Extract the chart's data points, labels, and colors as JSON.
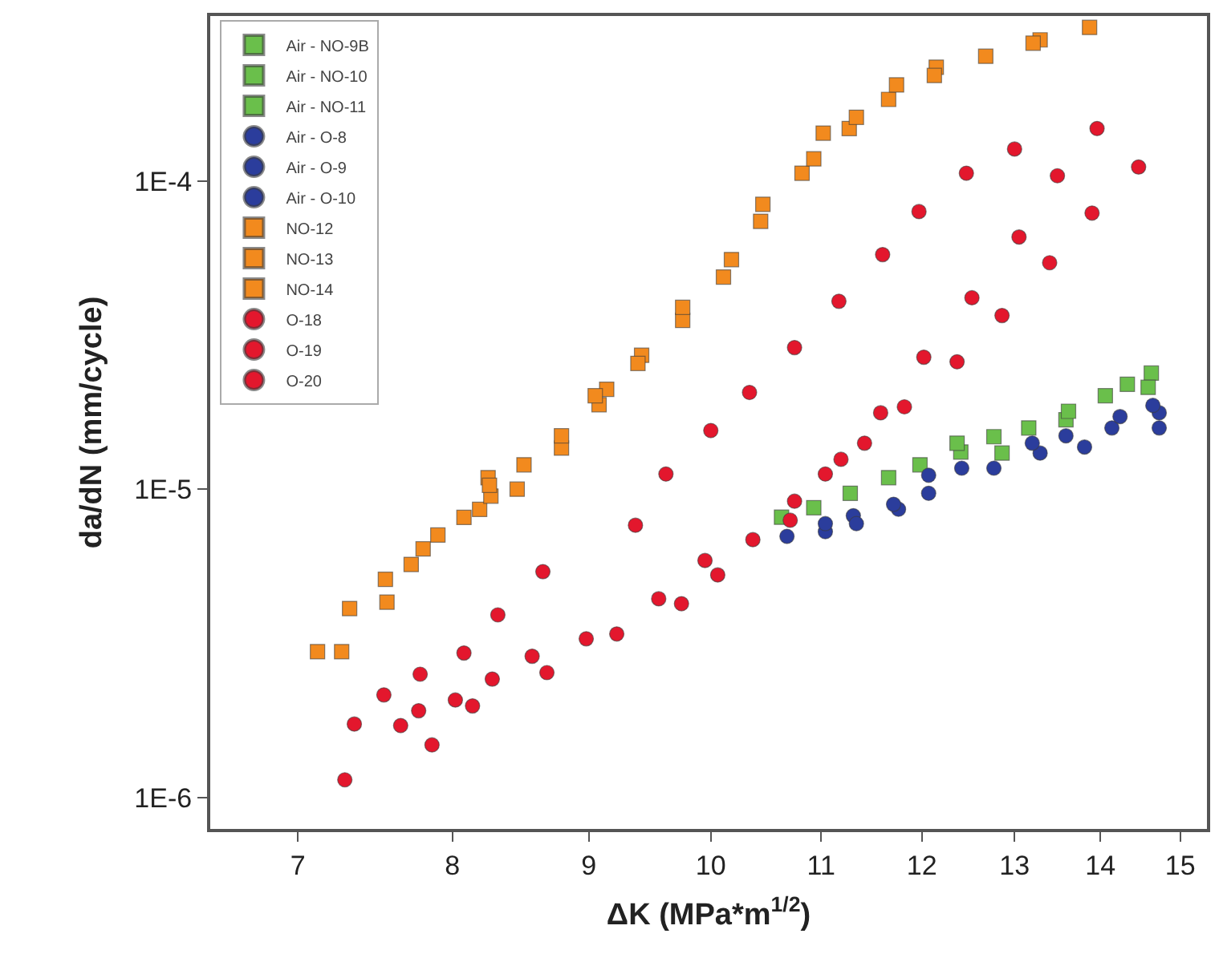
{
  "chart_data": {
    "type": "scatter",
    "xlabel": "ΔK (MPa*m$^{1/2}$)",
    "ylabel": "da/dN (mm/cycle)",
    "log": "xy",
    "xlim": [
      6.49,
      15.35
    ],
    "ylim": [
      7.9e-07,
      0.000343
    ],
    "xticks": [
      7,
      8,
      9,
      10,
      11,
      12,
      13,
      14,
      15
    ],
    "yticks": [
      {
        "value": 1e-06,
        "label": "1E-6"
      },
      {
        "value": 1e-05,
        "label": "1E-5"
      },
      {
        "value": 0.0001,
        "label": "1E-4"
      }
    ],
    "legend": "top left",
    "series": [
      {
        "name": "Air - NO-9B",
        "color": "#6abf4b",
        "marker": "square",
        "x": [
          10.63,
          11.66,
          12.41,
          13.16,
          14.06,
          14.63
        ],
        "values": [
          8.11e-06,
          1.09e-05,
          1.32e-05,
          1.58e-05,
          2.01e-05,
          2.38e-05
        ]
      },
      {
        "name": "Air - NO-10",
        "color": "#6abf4b",
        "marker": "square",
        "x": [
          10.93,
          11.98,
          12.77,
          13.59,
          14.33
        ],
        "values": [
          8.71e-06,
          1.2e-05,
          1.48e-05,
          1.68e-05,
          2.19e-05
        ]
      },
      {
        "name": "Air - NO-11",
        "color": "#6abf4b",
        "marker": "square",
        "x": [
          11.28,
          12.37,
          12.86,
          13.62,
          14.59
        ],
        "values": [
          9.7e-06,
          1.41e-05,
          1.31e-05,
          1.79e-05,
          2.14e-05
        ]
      },
      {
        "name": "Air - O-8",
        "color": "#2b3d9c",
        "marker": "circle",
        "x": [
          10.68,
          11.31,
          11.76,
          12.42,
          13.29,
          14.14,
          14.73
        ],
        "values": [
          7.03e-06,
          8.2e-06,
          8.61e-06,
          1.17e-05,
          1.31e-05,
          1.58e-05,
          1.77e-05
        ]
      },
      {
        "name": "Air - O-9",
        "color": "#2b3d9c",
        "marker": "circle",
        "x": [
          11.04,
          11.34,
          12.07,
          12.77,
          13.59,
          14.24,
          14.73
        ],
        "values": [
          7.28e-06,
          7.73e-06,
          9.7e-06,
          1.17e-05,
          1.49e-05,
          1.72e-05,
          1.58e-05
        ]
      },
      {
        "name": "Air - O-10",
        "color": "#2b3d9c",
        "marker": "circle",
        "x": [
          11.04,
          11.71,
          12.07,
          13.2,
          13.81,
          14.65
        ],
        "values": [
          7.73e-06,
          8.93e-06,
          1.11e-05,
          1.41e-05,
          1.37e-05,
          1.87e-05
        ]
      },
      {
        "name": "NO-12",
        "color": "#f28a1e",
        "marker": "square",
        "x": [
          7.12,
          7.56,
          7.8,
          8.19,
          8.27,
          8.79,
          9.08,
          9.42,
          10.11,
          10.46,
          11.02,
          11.66,
          12.15,
          13.29
        ],
        "values": [
          2.97e-06,
          4.3e-06,
          6.4e-06,
          8.6e-06,
          9.5e-06,
          1.36e-05,
          1.88e-05,
          2.72e-05,
          4.88e-05,
          8.4e-05,
          0.000143,
          0.000184,
          0.000234,
          0.000287
        ]
      },
      {
        "name": "NO-13",
        "color": "#f28a1e",
        "marker": "square",
        "x": [
          7.27,
          7.55,
          7.9,
          8.25,
          8.46,
          8.79,
          9.14,
          9.76,
          10.18,
          10.82,
          11.27,
          11.74,
          12.68,
          13.87
        ],
        "values": [
          2.97e-06,
          5.1e-06,
          7.1e-06,
          1.09e-05,
          1e-05,
          1.49e-05,
          2.11e-05,
          3.53e-05,
          5.56e-05,
          0.000106,
          0.000148,
          0.000205,
          0.000254,
          0.000315
        ]
      },
      {
        "name": "NO-14",
        "color": "#f28a1e",
        "marker": "square",
        "x": [
          7.32,
          7.72,
          8.08,
          8.26,
          8.51,
          9.05,
          9.39,
          9.76,
          10.44,
          10.93,
          11.34,
          12.13,
          13.21
        ],
        "values": [
          4.1e-06,
          5.7e-06,
          8.1e-06,
          1.03e-05,
          1.2e-05,
          2.01e-05,
          2.56e-05,
          3.89e-05,
          7.4e-05,
          0.000118,
          0.000161,
          0.00022,
          0.00028
        ]
      },
      {
        "name": "O-18",
        "color": "#e3172d",
        "marker": "circle",
        "x": [
          7.35,
          7.54,
          7.78,
          8.08,
          8.32,
          8.65,
          9.37,
          9.62,
          10.0,
          10.34,
          10.75,
          11.17,
          11.6,
          11.97,
          12.47,
          13.0,
          13.96
        ],
        "values": [
          1.73e-06,
          2.15e-06,
          2.51e-06,
          2.94e-06,
          3.91e-06,
          5.4e-06,
          7.64e-06,
          1.12e-05,
          1.55e-05,
          2.06e-05,
          2.88e-05,
          4.07e-05,
          5.77e-05,
          7.96e-05,
          0.000106,
          0.000127,
          0.000148
        ]
      },
      {
        "name": "O-19",
        "color": "#e3172d",
        "marker": "circle",
        "x": [
          7.29,
          7.77,
          8.02,
          8.28,
          8.68,
          9.22,
          9.75,
          10.06,
          10.71,
          11.04,
          11.42,
          11.82,
          12.37,
          12.86,
          13.4,
          13.9
        ],
        "values": [
          1.14e-06,
          1.91e-06,
          2.07e-06,
          2.42e-06,
          2.54e-06,
          3.39e-06,
          4.25e-06,
          5.27e-06,
          7.93e-06,
          1.12e-05,
          1.41e-05,
          1.85e-05,
          2.59e-05,
          3.66e-05,
          5.43e-05,
          7.87e-05
        ]
      },
      {
        "name": "O-20",
        "color": "#e3172d",
        "marker": "circle",
        "x": [
          7.65,
          7.86,
          8.14,
          8.57,
          8.98,
          9.56,
          9.95,
          10.37,
          10.75,
          11.19,
          11.58,
          12.02,
          12.53,
          13.05,
          13.49,
          14.47
        ],
        "values": [
          1.71e-06,
          1.48e-06,
          1.98e-06,
          2.87e-06,
          3.27e-06,
          4.41e-06,
          5.87e-06,
          6.86e-06,
          9.14e-06,
          1.25e-05,
          1.77e-05,
          2.68e-05,
          4.18e-05,
          6.58e-05,
          0.000104,
          0.000111
        ]
      }
    ]
  }
}
